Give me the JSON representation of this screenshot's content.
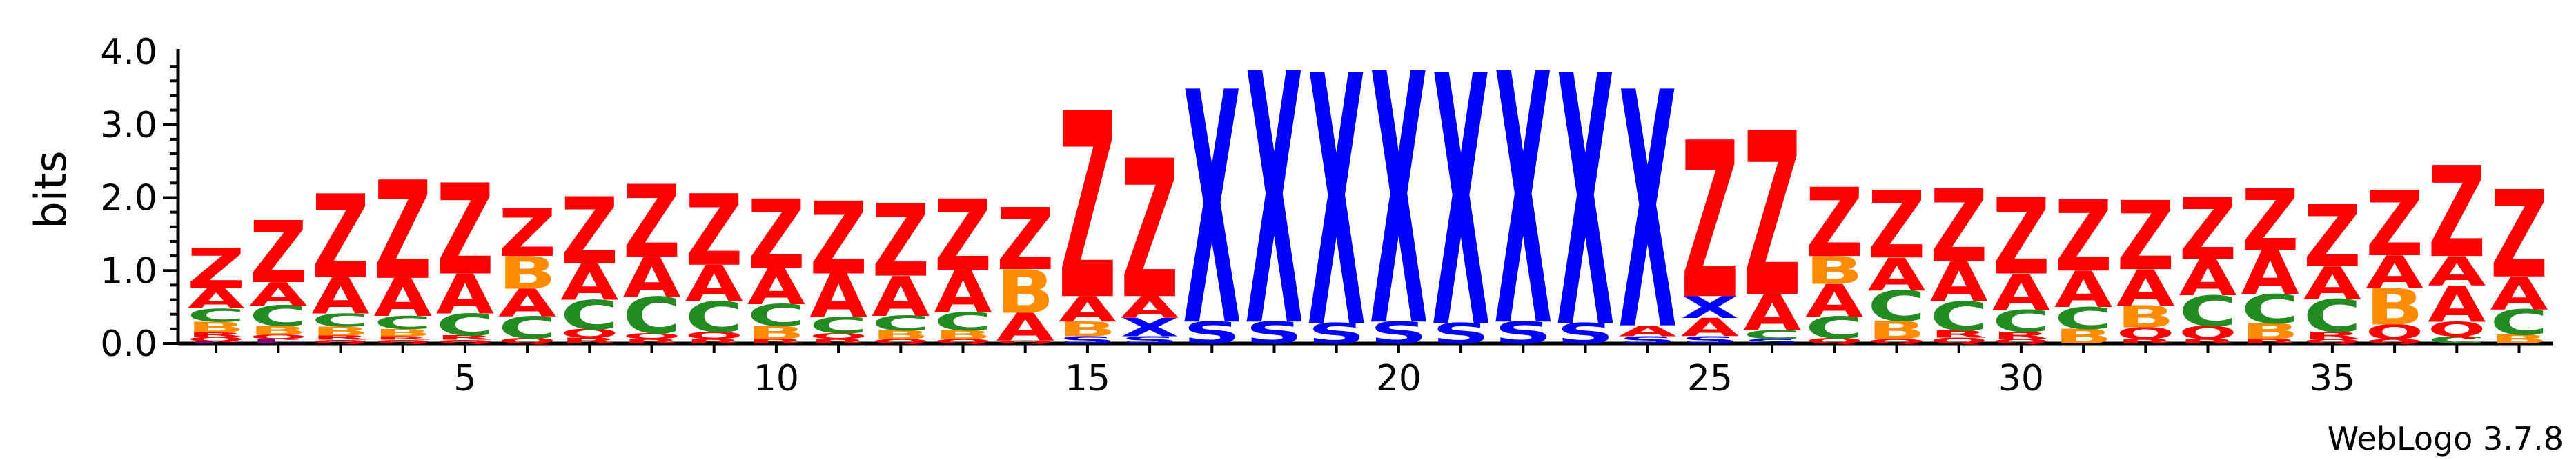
{
  "chart_data": {
    "type": "sequence-logo",
    "ylabel": "bits",
    "ylim": [
      0,
      4.0
    ],
    "y_ticks": [
      "0.0",
      "1.0",
      "2.0",
      "3.0",
      "4.0"
    ],
    "x_ticks": [
      {
        "position": 5,
        "label": "5"
      },
      {
        "position": 10,
        "label": "10"
      },
      {
        "position": 15,
        "label": "15"
      },
      {
        "position": 20,
        "label": "20"
      },
      {
        "position": 25,
        "label": "25"
      },
      {
        "position": 30,
        "label": "30"
      },
      {
        "position": 35,
        "label": "35"
      }
    ],
    "credit": "WebLogo 3.7.8",
    "colors": {
      "Z": "#ff0000",
      "A": "#ff0000",
      "X": "#0000ff",
      "S": "#0000ff",
      "C": "#228b22",
      "B": "#ff8c00",
      "Q": "#ff0000",
      "R": "#ff0000",
      "L": "#800080"
    },
    "positions": [
      {
        "pos": 1,
        "stack": [
          [
            "L",
            0.03
          ],
          [
            "Q",
            0.06
          ],
          [
            "R",
            0.06
          ],
          [
            "B",
            0.15
          ],
          [
            "C",
            0.18
          ],
          [
            "A",
            0.28
          ],
          [
            "Z",
            0.55
          ]
        ]
      },
      {
        "pos": 2,
        "stack": [
          [
            "L",
            0.06
          ],
          [
            "Q",
            0.06
          ],
          [
            "B",
            0.12
          ],
          [
            "C",
            0.28
          ],
          [
            "A",
            0.32
          ],
          [
            "Z",
            0.85
          ]
        ]
      },
      {
        "pos": 3,
        "stack": [
          [
            "Q",
            0.05
          ],
          [
            "R",
            0.06
          ],
          [
            "B",
            0.12
          ],
          [
            "C",
            0.18
          ],
          [
            "A",
            0.5
          ],
          [
            "Z",
            1.15
          ]
        ]
      },
      {
        "pos": 4,
        "stack": [
          [
            "Q",
            0.05
          ],
          [
            "R",
            0.05
          ],
          [
            "B",
            0.1
          ],
          [
            "C",
            0.18
          ],
          [
            "A",
            0.52
          ],
          [
            "Z",
            1.35
          ]
        ]
      },
      {
        "pos": 5,
        "stack": [
          [
            "Q",
            0.05
          ],
          [
            "R",
            0.06
          ],
          [
            "C",
            0.3
          ],
          [
            "A",
            0.55
          ],
          [
            "Z",
            1.25
          ]
        ]
      },
      {
        "pos": 6,
        "stack": [
          [
            "Q",
            0.07
          ],
          [
            "C",
            0.3
          ],
          [
            "A",
            0.38
          ],
          [
            "B",
            0.45
          ],
          [
            "Z",
            0.65
          ]
        ]
      },
      {
        "pos": 7,
        "stack": [
          [
            "R",
            0.08
          ],
          [
            "Q",
            0.12
          ],
          [
            "C",
            0.4
          ],
          [
            "A",
            0.5
          ],
          [
            "Z",
            0.92
          ]
        ]
      },
      {
        "pos": 8,
        "stack": [
          [
            "R",
            0.06
          ],
          [
            "Q",
            0.08
          ],
          [
            "C",
            0.5
          ],
          [
            "A",
            0.55
          ],
          [
            "Z",
            1.0
          ]
        ]
      },
      {
        "pos": 9,
        "stack": [
          [
            "R",
            0.06
          ],
          [
            "Q",
            0.1
          ],
          [
            "C",
            0.42
          ],
          [
            "A",
            0.5
          ],
          [
            "Z",
            0.98
          ]
        ]
      },
      {
        "pos": 10,
        "stack": [
          [
            "R",
            0.06
          ],
          [
            "B",
            0.18
          ],
          [
            "C",
            0.3
          ],
          [
            "A",
            0.5
          ],
          [
            "Z",
            0.95
          ]
        ]
      },
      {
        "pos": 11,
        "stack": [
          [
            "R",
            0.06
          ],
          [
            "Q",
            0.08
          ],
          [
            "C",
            0.22
          ],
          [
            "A",
            0.6
          ],
          [
            "Z",
            1.0
          ]
        ]
      },
      {
        "pos": 12,
        "stack": [
          [
            "Q",
            0.06
          ],
          [
            "B",
            0.12
          ],
          [
            "C",
            0.2
          ],
          [
            "A",
            0.55
          ],
          [
            "Z",
            1.0
          ]
        ]
      },
      {
        "pos": 13,
        "stack": [
          [
            "Q",
            0.06
          ],
          [
            "B",
            0.12
          ],
          [
            "C",
            0.25
          ],
          [
            "A",
            0.58
          ],
          [
            "Z",
            0.98
          ]
        ]
      },
      {
        "pos": 14,
        "stack": [
          [
            "Q",
            0.04
          ],
          [
            "A",
            0.38
          ],
          [
            "B",
            0.6
          ],
          [
            "Z",
            0.85
          ]
        ]
      },
      {
        "pos": 15,
        "stack": [
          [
            "S",
            0.1
          ],
          [
            "B",
            0.2
          ],
          [
            "A",
            0.35
          ],
          [
            "Z",
            2.55
          ]
        ]
      },
      {
        "pos": 16,
        "stack": [
          [
            "S",
            0.1
          ],
          [
            "X",
            0.25
          ],
          [
            "A",
            0.3
          ],
          [
            "Z",
            1.9
          ]
        ]
      },
      {
        "pos": 17,
        "stack": [
          [
            "S",
            0.3
          ],
          [
            "X",
            3.2
          ]
        ]
      },
      {
        "pos": 18,
        "stack": [
          [
            "S",
            0.3
          ],
          [
            "X",
            3.45
          ]
        ]
      },
      {
        "pos": 19,
        "stack": [
          [
            "S",
            0.28
          ],
          [
            "X",
            3.45
          ]
        ]
      },
      {
        "pos": 20,
        "stack": [
          [
            "S",
            0.3
          ],
          [
            "X",
            3.45
          ]
        ]
      },
      {
        "pos": 21,
        "stack": [
          [
            "S",
            0.28
          ],
          [
            "X",
            3.45
          ]
        ]
      },
      {
        "pos": 22,
        "stack": [
          [
            "S",
            0.3
          ],
          [
            "X",
            3.45
          ]
        ]
      },
      {
        "pos": 23,
        "stack": [
          [
            "S",
            0.28
          ],
          [
            "X",
            3.45
          ]
        ]
      },
      {
        "pos": 24,
        "stack": [
          [
            "S",
            0.1
          ],
          [
            "A",
            0.15
          ],
          [
            "X",
            3.25
          ]
        ]
      },
      {
        "pos": 25,
        "stack": [
          [
            "S",
            0.1
          ],
          [
            "A",
            0.25
          ],
          [
            "X",
            0.3
          ],
          [
            "Z",
            2.15
          ]
        ]
      },
      {
        "pos": 26,
        "stack": [
          [
            "S",
            0.06
          ],
          [
            "C",
            0.12
          ],
          [
            "A",
            0.5
          ],
          [
            "Z",
            2.25
          ]
        ]
      },
      {
        "pos": 27,
        "stack": [
          [
            "Q",
            0.07
          ],
          [
            "C",
            0.3
          ],
          [
            "A",
            0.45
          ],
          [
            "B",
            0.38
          ],
          [
            "Z",
            0.95
          ]
        ]
      },
      {
        "pos": 28,
        "stack": [
          [
            "Q",
            0.06
          ],
          [
            "B",
            0.25
          ],
          [
            "C",
            0.42
          ],
          [
            "A",
            0.45
          ],
          [
            "Z",
            0.93
          ]
        ]
      },
      {
        "pos": 29,
        "stack": [
          [
            "Q",
            0.08
          ],
          [
            "R",
            0.1
          ],
          [
            "C",
            0.4
          ],
          [
            "A",
            0.55
          ],
          [
            "Z",
            1.0
          ]
        ]
      },
      {
        "pos": 30,
        "stack": [
          [
            "Q",
            0.06
          ],
          [
            "R",
            0.1
          ],
          [
            "C",
            0.3
          ],
          [
            "A",
            0.5
          ],
          [
            "Z",
            1.05
          ]
        ]
      },
      {
        "pos": 31,
        "stack": [
          [
            "B",
            0.2
          ],
          [
            "C",
            0.3
          ],
          [
            "A",
            0.5
          ],
          [
            "Z",
            0.98
          ]
        ]
      },
      {
        "pos": 32,
        "stack": [
          [
            "R",
            0.06
          ],
          [
            "Q",
            0.16
          ],
          [
            "B",
            0.3
          ],
          [
            "A",
            0.5
          ],
          [
            "Z",
            0.95
          ]
        ]
      },
      {
        "pos": 33,
        "stack": [
          [
            "R",
            0.06
          ],
          [
            "Q",
            0.18
          ],
          [
            "C",
            0.42
          ],
          [
            "A",
            0.5
          ],
          [
            "Z",
            0.85
          ]
        ]
      },
      {
        "pos": 34,
        "stack": [
          [
            "R",
            0.06
          ],
          [
            "B",
            0.22
          ],
          [
            "C",
            0.4
          ],
          [
            "A",
            0.6
          ],
          [
            "Z",
            0.85
          ]
        ]
      },
      {
        "pos": 35,
        "stack": [
          [
            "Q",
            0.06
          ],
          [
            "R",
            0.1
          ],
          [
            "C",
            0.45
          ],
          [
            "A",
            0.45
          ],
          [
            "Z",
            0.85
          ]
        ]
      },
      {
        "pos": 36,
        "stack": [
          [
            "Q",
            0.06
          ],
          [
            "Q",
            0.2
          ],
          [
            "B",
            0.5
          ],
          [
            "A",
            0.45
          ],
          [
            "Z",
            0.9
          ]
        ]
      },
      {
        "pos": 37,
        "stack": [
          [
            "C",
            0.1
          ],
          [
            "Q",
            0.2
          ],
          [
            "A",
            0.5
          ],
          [
            "A",
            0.4
          ],
          [
            "Z",
            1.25
          ]
        ]
      },
      {
        "pos": 38,
        "stack": [
          [
            "B",
            0.12
          ],
          [
            "C",
            0.35
          ],
          [
            "A",
            0.45
          ],
          [
            "Z",
            1.2
          ]
        ]
      }
    ]
  }
}
